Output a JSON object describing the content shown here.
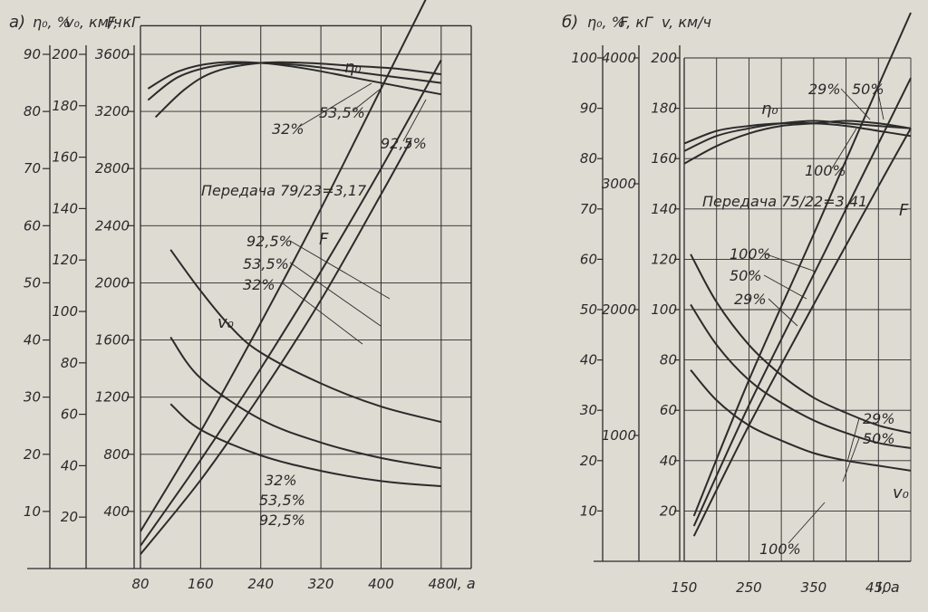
{
  "chart_data": [
    {
      "type": "line",
      "panel_label": "а)",
      "annotation": "Передача 79/23=3,17",
      "x_axis": {
        "label": "I, a",
        "ticks": [
          "80",
          "160",
          "240",
          "320",
          "400",
          "480"
        ],
        "range": [
          80,
          520
        ]
      },
      "y_axes": [
        {
          "label": "η₀, %",
          "ticks": [
            "10",
            "20",
            "30",
            "40",
            "50",
            "60",
            "70",
            "80",
            "90"
          ],
          "range": [
            0,
            90
          ]
        },
        {
          "label": "v₀, км/ч",
          "ticks": [
            "20",
            "40",
            "60",
            "80",
            "100",
            "120",
            "140",
            "160",
            "180",
            "200"
          ],
          "range": [
            0,
            200
          ]
        },
        {
          "label": "F, кГ",
          "ticks": [
            "400",
            "800",
            "1200",
            "1600",
            "2000",
            "2400",
            "2800",
            "3200",
            "3600"
          ],
          "range": [
            0,
            3600
          ]
        }
      ],
      "curve_labels": [
        "η₀",
        "F",
        "v₀"
      ],
      "series_labels": {
        "eta": [
          "32%",
          "53,5%",
          "92,5%"
        ],
        "F": [
          "92,5%",
          "53,5%",
          "32%"
        ],
        "v": [
          "32%",
          "53,5%",
          "92,5%"
        ]
      },
      "series": [
        {
          "name": "η₀ 32%",
          "x": [
            90,
            130,
            180,
            240,
            300,
            360,
            420,
            480
          ],
          "y": [
            84,
            87,
            88.5,
            88.5,
            87.5,
            86,
            84.5,
            83
          ]
        },
        {
          "name": "η₀ 53,5%",
          "x": [
            90,
            130,
            180,
            240,
            300,
            360,
            420,
            480
          ],
          "y": [
            82,
            86,
            88,
            88.5,
            88,
            87,
            86,
            85
          ]
        },
        {
          "name": "η₀ 92,5%",
          "x": [
            100,
            140,
            180,
            240,
            300,
            360,
            420,
            480
          ],
          "y": [
            79,
            84,
            87,
            88.5,
            88.5,
            88,
            87.5,
            86.5
          ]
        },
        {
          "name": "F 32%",
          "x": [
            80,
            160,
            240,
            320,
            400,
            440
          ],
          "y": [
            100,
            620,
            1220,
            1880,
            2620,
            3000
          ]
        },
        {
          "name": "F 53,5%",
          "x": [
            80,
            160,
            240,
            320,
            400,
            480
          ],
          "y": [
            160,
            760,
            1400,
            2080,
            2800,
            3560
          ]
        },
        {
          "name": "F 92,5%",
          "x": [
            80,
            160,
            240,
            320,
            400,
            480
          ],
          "y": [
            260,
            960,
            1720,
            2520,
            3360,
            4200
          ]
        },
        {
          "name": "v₀ 32%",
          "x": [
            120,
            160,
            200,
            240,
            320,
            400,
            480
          ],
          "y": [
            124,
            108,
            94,
            84,
            72,
            63,
            57
          ]
        },
        {
          "name": "v₀ 53,5%",
          "x": [
            120,
            160,
            240,
            320,
            400,
            480
          ],
          "y": [
            90,
            74,
            58,
            49,
            43,
            39
          ]
        },
        {
          "name": "v₀ 92,5%",
          "x": [
            120,
            160,
            240,
            320,
            400,
            480
          ],
          "y": [
            64,
            54,
            44,
            38,
            34,
            32
          ]
        }
      ]
    },
    {
      "type": "line",
      "panel_label": "б)",
      "annotation": "Передача 75/22=3,41",
      "x_axis": {
        "label": "I, a",
        "ticks": [
          "150",
          "250",
          "350",
          "450"
        ],
        "range": [
          150,
          500
        ]
      },
      "y_axes": [
        {
          "label": "η₀, %",
          "ticks": [
            "10",
            "20",
            "30",
            "40",
            "50",
            "60",
            "70",
            "80",
            "90",
            "100"
          ],
          "range": [
            0,
            100
          ]
        },
        {
          "label": "F, кГ",
          "ticks": [
            "1000",
            "2000",
            "3000",
            "4000"
          ],
          "range": [
            0,
            4000
          ]
        },
        {
          "label": "v, км/ч",
          "ticks": [
            "20",
            "40",
            "60",
            "80",
            "100",
            "120",
            "140",
            "160",
            "180",
            "200"
          ],
          "range": [
            0,
            200
          ]
        }
      ],
      "curve_labels": [
        "η₀",
        "F",
        "v₀"
      ],
      "series_labels": {
        "eta": [
          "29%",
          "50%",
          "100%"
        ],
        "F": [
          "100%",
          "50%",
          "29%"
        ],
        "v": [
          "29%",
          "50%",
          "100%"
        ]
      },
      "series": [
        {
          "name": "η₀ 29%",
          "x": [
            150,
            200,
            250,
            300,
            350,
            400,
            450,
            500
          ],
          "y": [
            83,
            85.5,
            86.5,
            87,
            87,
            86.5,
            85.5,
            84.5
          ]
        },
        {
          "name": "η₀ 50%",
          "x": [
            150,
            200,
            250,
            300,
            350,
            400,
            450,
            500
          ],
          "y": [
            81.5,
            84.5,
            86,
            87,
            87.5,
            87,
            86.5,
            86
          ]
        },
        {
          "name": "η₀ 100%",
          "x": [
            150,
            200,
            250,
            300,
            350,
            400,
            450,
            500
          ],
          "y": [
            79,
            82.5,
            85,
            86.5,
            87,
            87.5,
            87,
            86
          ]
        },
        {
          "name": "F 29%",
          "x": [
            165,
            250,
            350,
            450,
            500
          ],
          "y": [
            200,
            1080,
            2040,
            2980,
            3440
          ]
        },
        {
          "name": "F 50%",
          "x": [
            165,
            250,
            350,
            450,
            500
          ],
          "y": [
            280,
            1240,
            2280,
            3320,
            3840
          ]
        },
        {
          "name": "F 100%",
          "x": [
            165,
            250,
            350,
            450,
            500
          ],
          "y": [
            360,
            1440,
            2600,
            3780,
            4360
          ]
        },
        {
          "name": "v₀ 29%",
          "x": [
            160,
            200,
            250,
            300,
            350,
            400,
            450,
            500
          ],
          "y": [
            122,
            103,
            86,
            74,
            65,
            59,
            54,
            51
          ]
        },
        {
          "name": "v₀ 50%",
          "x": [
            160,
            200,
            250,
            300,
            350,
            400,
            450,
            500
          ],
          "y": [
            102,
            86,
            72,
            63,
            56,
            51,
            47,
            45
          ]
        },
        {
          "name": "v₀ 100%",
          "x": [
            160,
            200,
            250,
            300,
            350,
            400,
            450,
            500
          ],
          "y": [
            76,
            64,
            54,
            48,
            43,
            40,
            38,
            36
          ]
        }
      ]
    }
  ]
}
